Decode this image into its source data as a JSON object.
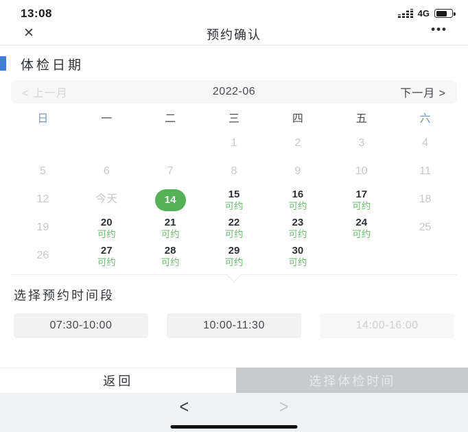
{
  "status_bar": {
    "time": "13:08",
    "network": "4G",
    "battery_percent": 70
  },
  "nav": {
    "title": "预约确认"
  },
  "icons": {
    "close": "✕",
    "more": "•••",
    "signal": "signal-bars",
    "battery": "battery-70"
  },
  "section": {
    "title": "体检日期"
  },
  "colors": {
    "accent_blue": "#3f7fd3",
    "weekday_blue": "#7598c4",
    "selected_green": "#55b155",
    "available_green": "#6bbd6f",
    "disabled_gray": "#c6c8ca",
    "confirm_gray": "#c9cacb"
  },
  "calendar": {
    "prev_label": "< 上一月",
    "month_label": "2022-06",
    "next_label": "下一月 >",
    "weekdays": [
      {
        "label": "日",
        "accent": true
      },
      {
        "label": "一",
        "accent": false
      },
      {
        "label": "二",
        "accent": false
      },
      {
        "label": "三",
        "accent": false
      },
      {
        "label": "四",
        "accent": false
      },
      {
        "label": "五",
        "accent": false
      },
      {
        "label": "六",
        "accent": true
      }
    ],
    "weeks": [
      [
        {
          "t": "",
          "s": "empty"
        },
        {
          "t": "",
          "s": "empty"
        },
        {
          "t": "",
          "s": "empty"
        },
        {
          "t": "1",
          "s": "disabled"
        },
        {
          "t": "2",
          "s": "disabled"
        },
        {
          "t": "3",
          "s": "disabled"
        },
        {
          "t": "4",
          "s": "disabled"
        }
      ],
      [
        {
          "t": "5",
          "s": "disabled"
        },
        {
          "t": "6",
          "s": "disabled"
        },
        {
          "t": "7",
          "s": "disabled"
        },
        {
          "t": "8",
          "s": "disabled"
        },
        {
          "t": "9",
          "s": "disabled"
        },
        {
          "t": "10",
          "s": "disabled"
        },
        {
          "t": "11",
          "s": "disabled"
        }
      ],
      [
        {
          "t": "12",
          "s": "disabled"
        },
        {
          "t": "今天",
          "s": "disabled"
        },
        {
          "t": "14",
          "s": "selected"
        },
        {
          "t": "15",
          "s": "available",
          "sub": "可约"
        },
        {
          "t": "16",
          "s": "available",
          "sub": "可约"
        },
        {
          "t": "17",
          "s": "available",
          "sub": "可约"
        },
        {
          "t": "18",
          "s": "disabled"
        }
      ],
      [
        {
          "t": "19",
          "s": "disabled"
        },
        {
          "t": "20",
          "s": "available",
          "sub": "可约"
        },
        {
          "t": "21",
          "s": "available",
          "sub": "可约"
        },
        {
          "t": "22",
          "s": "available",
          "sub": "可约"
        },
        {
          "t": "23",
          "s": "available",
          "sub": "可约"
        },
        {
          "t": "24",
          "s": "available",
          "sub": "可约"
        },
        {
          "t": "25",
          "s": "disabled"
        }
      ],
      [
        {
          "t": "26",
          "s": "disabled"
        },
        {
          "t": "27",
          "s": "available",
          "sub": "可约"
        },
        {
          "t": "28",
          "s": "available",
          "sub": "可约"
        },
        {
          "t": "29",
          "s": "available",
          "sub": "可约"
        },
        {
          "t": "30",
          "s": "available",
          "sub": "可约"
        },
        {
          "t": "",
          "s": "empty"
        },
        {
          "t": "",
          "s": "empty"
        }
      ]
    ]
  },
  "timeslots": {
    "title": "选择预约时间段",
    "slots": [
      {
        "label": "07:30-10:00",
        "enabled": true
      },
      {
        "label": "10:00-11:30",
        "enabled": true
      },
      {
        "label": "14:00-16:00",
        "enabled": false
      }
    ]
  },
  "actions": {
    "back": "返回",
    "confirm": "选择体检时间"
  },
  "browser_nav": {
    "back": "<",
    "forward": ">"
  }
}
